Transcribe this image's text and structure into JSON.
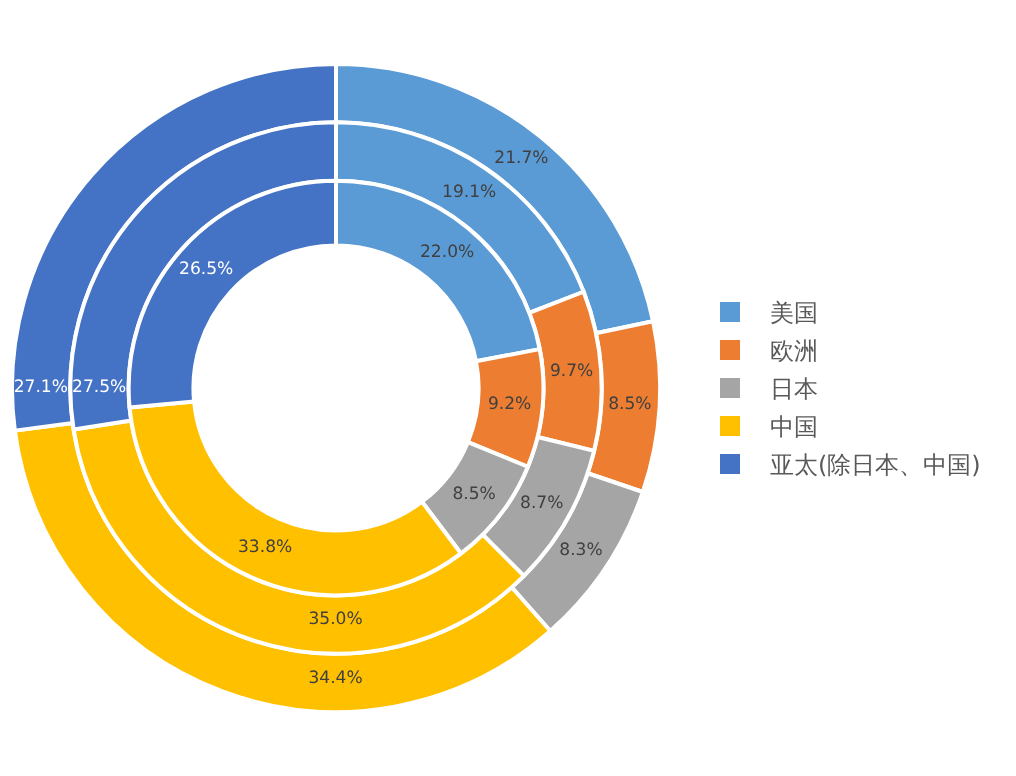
{
  "chart_data": {
    "type": "donut",
    "categories": [
      "美国",
      "欧洲",
      "日本",
      "中国",
      "亚太(除日本、中国)"
    ],
    "colors": [
      "#5b9bd5",
      "#ed7d31",
      "#a5a5a5",
      "#ffc000",
      "#4472c4"
    ],
    "series": [
      {
        "values": [
          21.7,
          8.5,
          8.3,
          34.4,
          27.1
        ],
        "value_labels": [
          "21.7%",
          "8.5%",
          "8.3%",
          "34.4%",
          "27.1%"
        ]
      },
      {
        "values": [
          19.1,
          9.7,
          8.7,
          35.0,
          27.5
        ],
        "value_labels": [
          "19.1%",
          "9.7%",
          "8.7%",
          "35.0%",
          "27.5%"
        ]
      },
      {
        "values": [
          22.0,
          9.2,
          8.5,
          33.8,
          26.5
        ],
        "value_labels": [
          "22.0%",
          "9.2%",
          "8.5%",
          "33.8%",
          "26.5%"
        ]
      }
    ],
    "legend": "right"
  }
}
